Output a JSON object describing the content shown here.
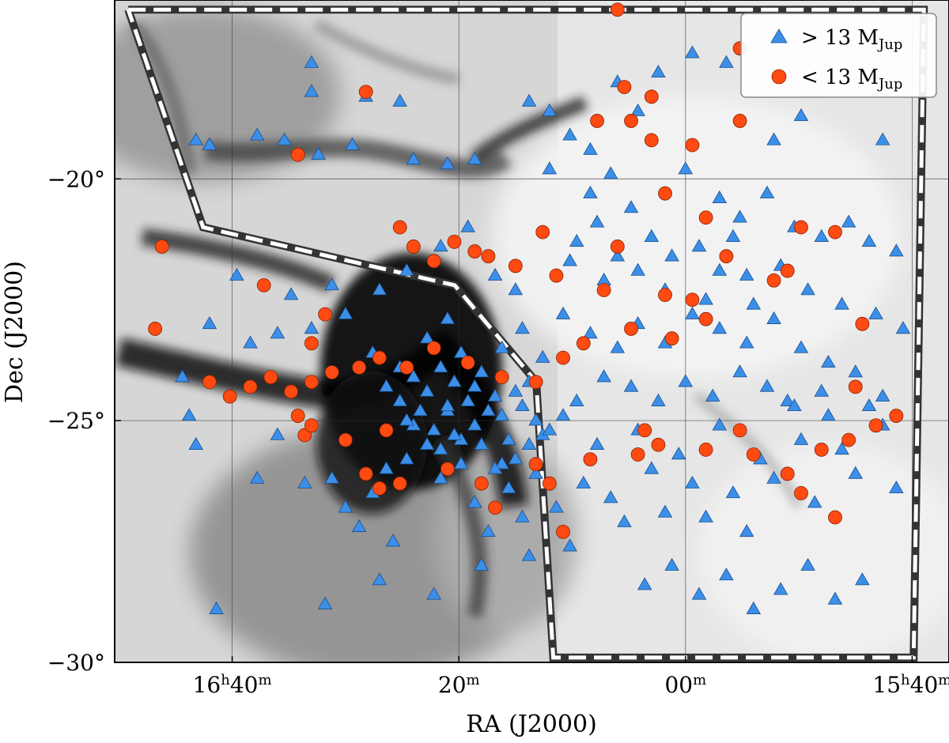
{
  "chart_data": {
    "type": "scatter",
    "title": "",
    "xlabel": "RA (J2000)",
    "ylabel": "Dec (J2000)",
    "x_ticks": [
      {
        "value": 16.6667,
        "main": "16",
        "sup1": "h",
        "mid": "40",
        "sup2": "m"
      },
      {
        "value": 16.3333,
        "main": "",
        "sup1": "",
        "mid": "20",
        "sup2": "m"
      },
      {
        "value": 16.0,
        "main": "",
        "sup1": "",
        "mid": "00",
        "sup2": "m"
      },
      {
        "value": 15.6667,
        "main": "15",
        "sup1": "h",
        "mid": "40",
        "sup2": "m"
      }
    ],
    "y_ticks": [
      {
        "value": -20,
        "label": "−20°"
      },
      {
        "value": -25,
        "label": "−25°"
      },
      {
        "value": -30,
        "label": "−30°"
      }
    ],
    "xlim_hours": [
      16.8395,
      15.6125
    ],
    "ylim_deg": [
      -30.0,
      -16.3
    ],
    "grid": true,
    "background": "grayscale extinction map",
    "legend_placement": "top-right",
    "legend": [
      {
        "marker": "triangle",
        "color": "#3b8fe8",
        "text": "> 13 M",
        "sub": "Jup"
      },
      {
        "marker": "circle",
        "color": "#ff4a12",
        "text": "< 13 M",
        "sub": "Jup"
      }
    ],
    "survey_boundary": [
      [
        16.8195,
        -16.5
      ],
      [
        15.6495,
        -16.5
      ],
      [
        15.6645,
        -29.9
      ],
      [
        16.1945,
        -29.9
      ],
      [
        16.2195,
        -24.2
      ],
      [
        16.3395,
        -22.2
      ],
      [
        16.7095,
        -21.0
      ],
      [
        16.8195,
        -16.5
      ]
    ],
    "series": [
      {
        "name": "> 13 M_Jup",
        "marker": "triangle",
        "color": "#3b8fe8",
        "points": [
          [
            16.55,
            -17.6
          ],
          [
            16.55,
            -18.2
          ],
          [
            16.47,
            -18.3
          ],
          [
            16.42,
            -18.4
          ],
          [
            16.72,
            -19.2
          ],
          [
            16.7,
            -19.3
          ],
          [
            16.63,
            -19.1
          ],
          [
            16.59,
            -19.2
          ],
          [
            16.54,
            -19.5
          ],
          [
            16.49,
            -19.3
          ],
          [
            16.4,
            -19.6
          ],
          [
            16.35,
            -19.7
          ],
          [
            16.31,
            -19.6
          ],
          [
            16.23,
            -18.4
          ],
          [
            16.2,
            -18.6
          ],
          [
            16.17,
            -19.1
          ],
          [
            16.14,
            -19.4
          ],
          [
            16.1,
            -18.0
          ],
          [
            16.07,
            -18.6
          ],
          [
            16.04,
            -17.8
          ],
          [
            15.99,
            -17.4
          ],
          [
            15.94,
            -17.6
          ],
          [
            15.87,
            -19.2
          ],
          [
            15.83,
            -18.7
          ],
          [
            15.71,
            -19.2
          ],
          [
            16.2,
            -19.8
          ],
          [
            16.11,
            -19.9
          ],
          [
            16.08,
            -20.6
          ],
          [
            16.14,
            -20.3
          ],
          [
            16.0,
            -19.8
          ],
          [
            15.95,
            -20.4
          ],
          [
            15.92,
            -20.8
          ],
          [
            15.88,
            -20.3
          ],
          [
            15.84,
            -21.0
          ],
          [
            15.8,
            -21.2
          ],
          [
            15.76,
            -20.9
          ],
          [
            15.73,
            -21.3
          ],
          [
            15.69,
            -21.5
          ],
          [
            15.86,
            -21.8
          ],
          [
            15.91,
            -22.0
          ],
          [
            15.95,
            -21.9
          ],
          [
            16.02,
            -21.6
          ],
          [
            16.07,
            -21.9
          ],
          [
            16.12,
            -22.1
          ],
          [
            16.17,
            -21.7
          ],
          [
            16.25,
            -22.3
          ],
          [
            16.32,
            -21.0
          ],
          [
            16.36,
            -21.4
          ],
          [
            16.41,
            -21.9
          ],
          [
            16.45,
            -22.3
          ],
          [
            16.52,
            -22.2
          ],
          [
            16.58,
            -22.4
          ],
          [
            16.66,
            -22.0
          ],
          [
            16.7,
            -23.0
          ],
          [
            16.64,
            -23.4
          ],
          [
            16.6,
            -23.2
          ],
          [
            16.55,
            -23.1
          ],
          [
            16.5,
            -22.8
          ],
          [
            16.46,
            -23.6
          ],
          [
            16.42,
            -23.9
          ],
          [
            16.38,
            -23.3
          ],
          [
            16.35,
            -22.9
          ],
          [
            16.33,
            -23.6
          ],
          [
            16.3,
            -24.0
          ],
          [
            16.27,
            -23.5
          ],
          [
            16.24,
            -23.1
          ],
          [
            16.21,
            -23.7
          ],
          [
            16.18,
            -22.8
          ],
          [
            16.14,
            -23.2
          ],
          [
            16.1,
            -23.5
          ],
          [
            16.07,
            -23.0
          ],
          [
            16.03,
            -23.4
          ],
          [
            15.99,
            -22.8
          ],
          [
            15.95,
            -23.1
          ],
          [
            15.91,
            -23.4
          ],
          [
            15.87,
            -22.9
          ],
          [
            15.83,
            -23.5
          ],
          [
            15.79,
            -23.8
          ],
          [
            15.75,
            -24.0
          ],
          [
            15.71,
            -24.5
          ],
          [
            16.74,
            -24.1
          ],
          [
            16.73,
            -24.9
          ],
          [
            16.72,
            -25.5
          ],
          [
            16.6,
            -25.3
          ],
          [
            16.56,
            -26.3
          ],
          [
            16.52,
            -26.2
          ],
          [
            16.5,
            -26.8
          ],
          [
            16.48,
            -27.2
          ],
          [
            16.46,
            -26.5
          ],
          [
            16.44,
            -26.0
          ],
          [
            16.43,
            -27.5
          ],
          [
            16.41,
            -25.8
          ],
          [
            16.4,
            -25.1
          ],
          [
            16.38,
            -25.5
          ],
          [
            16.36,
            -26.2
          ],
          [
            16.35,
            -24.8
          ],
          [
            16.33,
            -25.4
          ],
          [
            16.31,
            -26.7
          ],
          [
            16.29,
            -27.3
          ],
          [
            16.27,
            -25.9
          ],
          [
            16.26,
            -26.4
          ],
          [
            16.24,
            -27.0
          ],
          [
            16.22,
            -26.1
          ],
          [
            16.21,
            -25.3
          ],
          [
            16.19,
            -26.8
          ],
          [
            16.17,
            -27.6
          ],
          [
            16.15,
            -26.3
          ],
          [
            16.13,
            -25.5
          ],
          [
            16.11,
            -26.6
          ],
          [
            16.09,
            -27.1
          ],
          [
            16.07,
            -25.2
          ],
          [
            16.05,
            -26.0
          ],
          [
            16.03,
            -26.9
          ],
          [
            16.01,
            -25.7
          ],
          [
            15.99,
            -26.3
          ],
          [
            15.97,
            -27.0
          ],
          [
            15.95,
            -25.1
          ],
          [
            15.93,
            -26.5
          ],
          [
            15.91,
            -27.3
          ],
          [
            15.89,
            -25.8
          ],
          [
            15.87,
            -26.2
          ],
          [
            15.85,
            -24.6
          ],
          [
            15.83,
            -25.4
          ],
          [
            15.81,
            -26.7
          ],
          [
            15.79,
            -24.9
          ],
          [
            15.77,
            -25.6
          ],
          [
            15.75,
            -26.1
          ],
          [
            15.73,
            -24.7
          ],
          [
            15.71,
            -25.1
          ],
          [
            15.69,
            -26.4
          ],
          [
            16.44,
            -24.3
          ],
          [
            16.42,
            -24.6
          ],
          [
            16.4,
            -24.1
          ],
          [
            16.38,
            -24.4
          ],
          [
            16.36,
            -23.9
          ],
          [
            16.35,
            -24.7
          ],
          [
            16.34,
            -24.2
          ],
          [
            16.32,
            -24.6
          ],
          [
            16.31,
            -24.3
          ],
          [
            16.29,
            -24.8
          ],
          [
            16.28,
            -24.5
          ],
          [
            16.27,
            -24.9
          ],
          [
            16.25,
            -24.4
          ],
          [
            16.24,
            -24.7
          ],
          [
            16.23,
            -24.2
          ],
          [
            16.22,
            -25.0
          ],
          [
            16.41,
            -25.0
          ],
          [
            16.39,
            -24.8
          ],
          [
            16.37,
            -25.2
          ],
          [
            16.36,
            -25.6
          ],
          [
            16.34,
            -25.3
          ],
          [
            16.33,
            -25.9
          ],
          [
            16.31,
            -25.1
          ],
          [
            16.3,
            -25.5
          ],
          [
            16.28,
            -26.0
          ],
          [
            16.26,
            -25.4
          ],
          [
            16.25,
            -25.8
          ],
          [
            16.23,
            -25.5
          ],
          [
            16.2,
            -25.2
          ],
          [
            16.18,
            -24.9
          ],
          [
            16.16,
            -24.6
          ],
          [
            16.12,
            -24.1
          ],
          [
            16.08,
            -24.3
          ],
          [
            16.04,
            -24.6
          ],
          [
            16.0,
            -24.2
          ],
          [
            15.96,
            -24.5
          ],
          [
            15.92,
            -24.0
          ],
          [
            15.88,
            -24.3
          ],
          [
            15.84,
            -24.7
          ],
          [
            15.8,
            -24.4
          ],
          [
            16.06,
            -28.4
          ],
          [
            16.02,
            -28.0
          ],
          [
            15.98,
            -28.6
          ],
          [
            15.94,
            -28.2
          ],
          [
            15.9,
            -28.9
          ],
          [
            15.86,
            -28.5
          ],
          [
            15.82,
            -28.0
          ],
          [
            15.78,
            -28.7
          ],
          [
            15.74,
            -28.3
          ],
          [
            16.53,
            -28.8
          ],
          [
            16.45,
            -28.3
          ],
          [
            16.37,
            -28.6
          ],
          [
            16.3,
            -28.0
          ],
          [
            16.23,
            -27.8
          ],
          [
            16.63,
            -26.2
          ],
          [
            16.69,
            -28.9
          ],
          [
            16.13,
            -20.9
          ],
          [
            16.05,
            -21.2
          ],
          [
            15.98,
            -21.4
          ],
          [
            15.93,
            -21.2
          ],
          [
            16.16,
            -21.3
          ],
          [
            16.1,
            -21.6
          ],
          [
            16.03,
            -22.3
          ],
          [
            15.97,
            -22.5
          ],
          [
            15.9,
            -22.6
          ],
          [
            15.82,
            -22.3
          ],
          [
            15.77,
            -22.6
          ],
          [
            15.72,
            -22.8
          ],
          [
            15.68,
            -23.1
          ],
          [
            16.28,
            -22.0
          ]
        ]
      },
      {
        "name": "< 13 M_Jup",
        "marker": "circle",
        "color": "#ff4a12",
        "points": [
          [
            16.1,
            -16.5
          ],
          [
            15.92,
            -17.3
          ],
          [
            16.47,
            -18.2
          ],
          [
            16.09,
            -18.1
          ],
          [
            16.08,
            -18.8
          ],
          [
            16.13,
            -18.8
          ],
          [
            15.92,
            -18.8
          ],
          [
            16.05,
            -18.3
          ],
          [
            16.05,
            -19.2
          ],
          [
            15.99,
            -19.3
          ],
          [
            16.57,
            -19.5
          ],
          [
            16.42,
            -21.0
          ],
          [
            16.4,
            -21.4
          ],
          [
            16.37,
            -21.7
          ],
          [
            16.34,
            -21.3
          ],
          [
            16.31,
            -21.5
          ],
          [
            16.29,
            -21.6
          ],
          [
            16.25,
            -21.8
          ],
          [
            16.19,
            -22.0
          ],
          [
            16.12,
            -22.3
          ],
          [
            16.03,
            -22.4
          ],
          [
            15.99,
            -22.5
          ],
          [
            15.97,
            -22.9
          ],
          [
            16.02,
            -23.3
          ],
          [
            16.08,
            -23.1
          ],
          [
            16.15,
            -23.4
          ],
          [
            16.18,
            -23.7
          ],
          [
            16.22,
            -24.2
          ],
          [
            16.27,
            -24.1
          ],
          [
            16.32,
            -23.8
          ],
          [
            16.37,
            -23.5
          ],
          [
            16.41,
            -23.9
          ],
          [
            16.45,
            -23.7
          ],
          [
            16.48,
            -23.9
          ],
          [
            16.52,
            -24.0
          ],
          [
            16.55,
            -24.2
          ],
          [
            16.58,
            -24.4
          ],
          [
            16.61,
            -24.1
          ],
          [
            16.64,
            -24.3
          ],
          [
            16.67,
            -24.5
          ],
          [
            16.7,
            -24.2
          ],
          [
            16.55,
            -23.4
          ],
          [
            16.57,
            -24.9
          ],
          [
            16.56,
            -25.3
          ],
          [
            16.55,
            -25.1
          ],
          [
            16.5,
            -25.4
          ],
          [
            16.44,
            -25.2
          ],
          [
            16.47,
            -26.1
          ],
          [
            16.45,
            -26.4
          ],
          [
            16.42,
            -26.3
          ],
          [
            16.35,
            -26.0
          ],
          [
            16.3,
            -26.3
          ],
          [
            16.28,
            -26.8
          ],
          [
            16.22,
            -25.9
          ],
          [
            16.2,
            -26.3
          ],
          [
            16.18,
            -27.3
          ],
          [
            16.14,
            -25.8
          ],
          [
            16.07,
            -25.7
          ],
          [
            16.04,
            -25.5
          ],
          [
            15.97,
            -25.6
          ],
          [
            15.92,
            -25.2
          ],
          [
            15.9,
            -25.7
          ],
          [
            15.85,
            -26.1
          ],
          [
            15.83,
            -26.5
          ],
          [
            15.8,
            -25.6
          ],
          [
            15.76,
            -25.4
          ],
          [
            15.72,
            -25.1
          ],
          [
            15.69,
            -24.9
          ],
          [
            15.75,
            -24.3
          ],
          [
            15.78,
            -27.0
          ],
          [
            16.77,
            -21.4
          ],
          [
            16.78,
            -23.1
          ],
          [
            16.62,
            -22.2
          ],
          [
            16.53,
            -22.8
          ],
          [
            16.21,
            -21.1
          ],
          [
            16.1,
            -21.4
          ],
          [
            15.94,
            -21.6
          ],
          [
            15.87,
            -22.1
          ],
          [
            15.85,
            -21.9
          ],
          [
            15.83,
            -21.0
          ],
          [
            15.78,
            -21.1
          ],
          [
            15.74,
            -23.0
          ],
          [
            16.03,
            -20.3
          ],
          [
            15.97,
            -20.8
          ],
          [
            16.06,
            -25.2
          ]
        ]
      }
    ]
  }
}
